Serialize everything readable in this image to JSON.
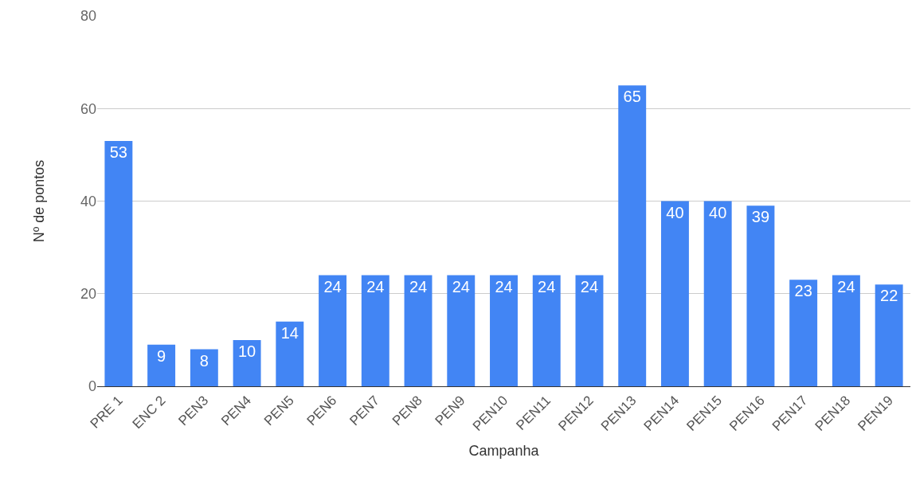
{
  "chart_data": {
    "type": "bar",
    "xlabel": "Campanha",
    "ylabel": "Nº de pontos",
    "categories": [
      "PRE 1",
      "ENC 2",
      "PEN3",
      "PEN4",
      "PEN5",
      "PEN6",
      "PEN7",
      "PEN8",
      "PEN9",
      "PEN10",
      "PEN11",
      "PEN12",
      "PEN13",
      "PEN14",
      "PEN15",
      "PEN16",
      "PEN17",
      "PEN18",
      "PEN19"
    ],
    "values": [
      53,
      9,
      8,
      10,
      14,
      24,
      24,
      24,
      24,
      24,
      24,
      24,
      65,
      40,
      40,
      39,
      23,
      24,
      22
    ],
    "color": "#4285f4",
    "ylim": [
      0,
      80
    ],
    "yticks": [
      0,
      20,
      40,
      60,
      80
    ],
    "grid": "y",
    "data_labels": true
  }
}
